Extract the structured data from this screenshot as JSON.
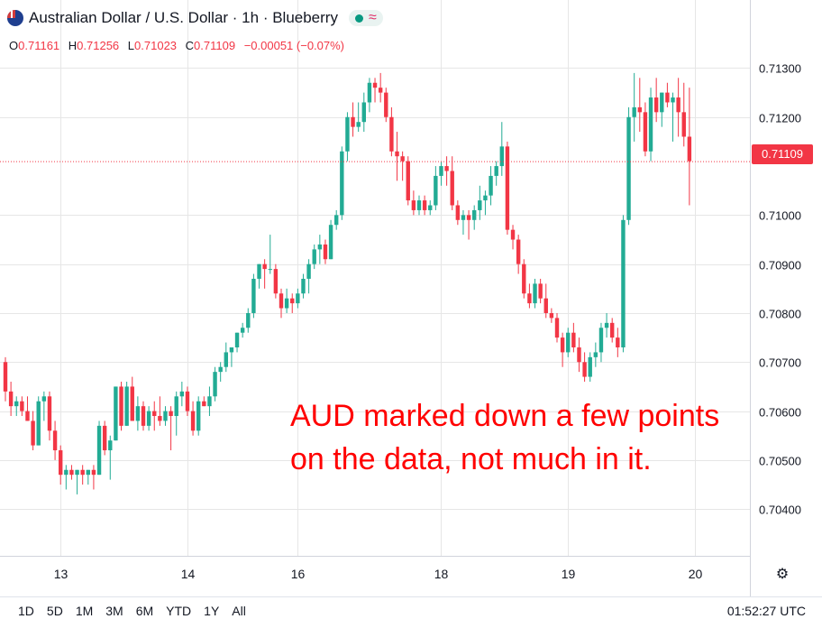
{
  "header": {
    "title": "Australian Dollar / U.S. Dollar · 1h · Blueberry",
    "open_label": "O",
    "open": "0.71161",
    "high_label": "H",
    "high": "0.71256",
    "low_label": "L",
    "low": "0.71023",
    "close_label": "C",
    "close": "0.71109",
    "change": "−0.00051 (−0.07%)"
  },
  "annotation": [
    "AUD marked down a few points",
    "on the data, not much in it."
  ],
  "current_price_label": "0.71109",
  "range_buttons": [
    "1D",
    "5D",
    "1M",
    "3M",
    "6M",
    "YTD",
    "1Y",
    "All"
  ],
  "clock": "01:52:27 UTC",
  "colors": {
    "up": "#22ab94",
    "down": "#f23645",
    "grid": "#e6e6e6",
    "annotation": "#ff0000"
  },
  "chart_data": {
    "type": "candlestick",
    "symbol": "AUDUSD",
    "interval": "1h",
    "y_ticks": [
      "0.70400",
      "0.70500",
      "0.70600",
      "0.70700",
      "0.70800",
      "0.70900",
      "0.71000",
      "0.71200",
      "0.71300"
    ],
    "ylim": [
      0.70358,
      0.71334
    ],
    "x_ticks": [
      {
        "label": "13",
        "index": 10
      },
      {
        "label": "14",
        "index": 33
      },
      {
        "label": "16",
        "index": 53
      },
      {
        "label": "18",
        "index": 79
      },
      {
        "label": "19",
        "index": 102
      },
      {
        "label": "20",
        "index": 125
      }
    ],
    "last_price": 0.71109,
    "candles": [
      [
        0.707,
        0.7071,
        0.7062,
        0.7064
      ],
      [
        0.7064,
        0.7066,
        0.7059,
        0.7061
      ],
      [
        0.7061,
        0.7063,
        0.7059,
        0.7062
      ],
      [
        0.7062,
        0.7063,
        0.7059,
        0.706
      ],
      [
        0.706,
        0.7063,
        0.7058,
        0.7058
      ],
      [
        0.7058,
        0.706,
        0.7052,
        0.7053
      ],
      [
        0.7053,
        0.7063,
        0.7053,
        0.7062
      ],
      [
        0.7062,
        0.7064,
        0.7058,
        0.7063
      ],
      [
        0.7063,
        0.7064,
        0.7054,
        0.7056
      ],
      [
        0.7056,
        0.7058,
        0.705,
        0.7052
      ],
      [
        0.7052,
        0.7053,
        0.7045,
        0.7047
      ],
      [
        0.7047,
        0.7049,
        0.7044,
        0.7048
      ],
      [
        0.7048,
        0.7049,
        0.7046,
        0.7047
      ],
      [
        0.7047,
        0.7048,
        0.7043,
        0.7048
      ],
      [
        0.7048,
        0.7049,
        0.7045,
        0.7047
      ],
      [
        0.7047,
        0.7048,
        0.7045,
        0.7048
      ],
      [
        0.7048,
        0.7049,
        0.7044,
        0.7047
      ],
      [
        0.7047,
        0.7058,
        0.7047,
        0.7057
      ],
      [
        0.7057,
        0.7058,
        0.7051,
        0.7052
      ],
      [
        0.7052,
        0.7055,
        0.7046,
        0.7054
      ],
      [
        0.7054,
        0.7065,
        0.7054,
        0.7065
      ],
      [
        0.7065,
        0.7066,
        0.7056,
        0.7057
      ],
      [
        0.7057,
        0.7066,
        0.7057,
        0.7065
      ],
      [
        0.7065,
        0.7067,
        0.7058,
        0.7058
      ],
      [
        0.7058,
        0.7063,
        0.7056,
        0.7061
      ],
      [
        0.7061,
        0.7062,
        0.7056,
        0.7057
      ],
      [
        0.7057,
        0.7061,
        0.7056,
        0.706
      ],
      [
        0.706,
        0.7062,
        0.7056,
        0.7059
      ],
      [
        0.7059,
        0.7063,
        0.7057,
        0.7058
      ],
      [
        0.7058,
        0.7061,
        0.7057,
        0.706
      ],
      [
        0.706,
        0.7061,
        0.7052,
        0.7059
      ],
      [
        0.7059,
        0.7064,
        0.7055,
        0.7063
      ],
      [
        0.7063,
        0.7066,
        0.7061,
        0.7064
      ],
      [
        0.7064,
        0.7065,
        0.7059,
        0.706
      ],
      [
        0.706,
        0.7062,
        0.7055,
        0.7056
      ],
      [
        0.7056,
        0.7063,
        0.7055,
        0.7062
      ],
      [
        0.7062,
        0.7063,
        0.7061,
        0.7061
      ],
      [
        0.7061,
        0.7065,
        0.7059,
        0.7063
      ],
      [
        0.7063,
        0.7069,
        0.7062,
        0.7068
      ],
      [
        0.7068,
        0.707,
        0.7066,
        0.7069
      ],
      [
        0.7069,
        0.7074,
        0.7068,
        0.7072
      ],
      [
        0.7072,
        0.7073,
        0.7069,
        0.7073
      ],
      [
        0.7073,
        0.7076,
        0.7072,
        0.7076
      ],
      [
        0.7076,
        0.7078,
        0.7075,
        0.7077
      ],
      [
        0.7077,
        0.7081,
        0.7076,
        0.708
      ],
      [
        0.708,
        0.7088,
        0.7079,
        0.7087
      ],
      [
        0.7087,
        0.709,
        0.7085,
        0.709
      ],
      [
        0.709,
        0.7091,
        0.7085,
        0.7089
      ],
      [
        0.7089,
        0.7096,
        0.7088,
        0.7089
      ],
      [
        0.7089,
        0.709,
        0.7083,
        0.7084
      ],
      [
        0.7084,
        0.7085,
        0.7079,
        0.7081
      ],
      [
        0.7081,
        0.7085,
        0.708,
        0.7083
      ],
      [
        0.7083,
        0.7084,
        0.708,
        0.7082
      ],
      [
        0.7082,
        0.7085,
        0.7081,
        0.7084
      ],
      [
        0.7084,
        0.7088,
        0.7083,
        0.7087
      ],
      [
        0.7087,
        0.7091,
        0.7084,
        0.709
      ],
      [
        0.709,
        0.7094,
        0.7089,
        0.7093
      ],
      [
        0.7093,
        0.7096,
        0.709,
        0.7094
      ],
      [
        0.7094,
        0.7095,
        0.709,
        0.7091
      ],
      [
        0.7091,
        0.7099,
        0.7091,
        0.7098
      ],
      [
        0.7098,
        0.7101,
        0.7097,
        0.71
      ],
      [
        0.71,
        0.7114,
        0.7099,
        0.7113
      ],
      [
        0.7113,
        0.7121,
        0.7111,
        0.712
      ],
      [
        0.712,
        0.7123,
        0.7116,
        0.7118
      ],
      [
        0.7118,
        0.7123,
        0.7117,
        0.7119
      ],
      [
        0.7119,
        0.7125,
        0.7117,
        0.7123
      ],
      [
        0.7123,
        0.7128,
        0.7121,
        0.7127
      ],
      [
        0.7127,
        0.7128,
        0.7123,
        0.7126
      ],
      [
        0.7126,
        0.7129,
        0.7123,
        0.7125
      ],
      [
        0.7125,
        0.7126,
        0.7119,
        0.712
      ],
      [
        0.712,
        0.7122,
        0.7112,
        0.7113
      ],
      [
        0.7113,
        0.7117,
        0.7107,
        0.7112
      ],
      [
        0.7112,
        0.7113,
        0.7107,
        0.7111
      ],
      [
        0.7111,
        0.7112,
        0.7102,
        0.7103
      ],
      [
        0.7103,
        0.7105,
        0.71,
        0.7101
      ],
      [
        0.7101,
        0.7104,
        0.71,
        0.7103
      ],
      [
        0.7103,
        0.7104,
        0.71,
        0.7101
      ],
      [
        0.7101,
        0.7103,
        0.71,
        0.7102
      ],
      [
        0.7102,
        0.711,
        0.7101,
        0.7108
      ],
      [
        0.7108,
        0.7111,
        0.7106,
        0.711
      ],
      [
        0.711,
        0.7112,
        0.7106,
        0.7109
      ],
      [
        0.7109,
        0.7112,
        0.7101,
        0.7102
      ],
      [
        0.7102,
        0.7103,
        0.7098,
        0.7099
      ],
      [
        0.7099,
        0.7101,
        0.7096,
        0.71
      ],
      [
        0.71,
        0.7101,
        0.7095,
        0.7099
      ],
      [
        0.7099,
        0.7102,
        0.7097,
        0.7101
      ],
      [
        0.7101,
        0.7106,
        0.7099,
        0.7103
      ],
      [
        0.7103,
        0.7105,
        0.71,
        0.7104
      ],
      [
        0.7104,
        0.711,
        0.7102,
        0.7108
      ],
      [
        0.7108,
        0.7111,
        0.7106,
        0.711
      ],
      [
        0.711,
        0.7119,
        0.7108,
        0.7114
      ],
      [
        0.7114,
        0.7115,
        0.7096,
        0.7097
      ],
      [
        0.7097,
        0.7098,
        0.7093,
        0.7095
      ],
      [
        0.7095,
        0.7096,
        0.7088,
        0.709
      ],
      [
        0.709,
        0.7091,
        0.7083,
        0.7084
      ],
      [
        0.7084,
        0.7086,
        0.7081,
        0.7082
      ],
      [
        0.7082,
        0.7087,
        0.7081,
        0.7086
      ],
      [
        0.7086,
        0.7087,
        0.7082,
        0.7083
      ],
      [
        0.7083,
        0.7086,
        0.7079,
        0.708
      ],
      [
        0.708,
        0.7081,
        0.7078,
        0.7079
      ],
      [
        0.7079,
        0.708,
        0.7074,
        0.7075
      ],
      [
        0.7075,
        0.7076,
        0.7069,
        0.7072
      ],
      [
        0.7072,
        0.7077,
        0.7071,
        0.7076
      ],
      [
        0.7076,
        0.7078,
        0.7072,
        0.7073
      ],
      [
        0.7073,
        0.7075,
        0.7068,
        0.707
      ],
      [
        0.707,
        0.7072,
        0.7066,
        0.7067
      ],
      [
        0.7067,
        0.7072,
        0.7066,
        0.7071
      ],
      [
        0.7071,
        0.7074,
        0.7069,
        0.7072
      ],
      [
        0.7072,
        0.7078,
        0.707,
        0.7077
      ],
      [
        0.7077,
        0.708,
        0.7075,
        0.7078
      ],
      [
        0.7078,
        0.7079,
        0.7074,
        0.7075
      ],
      [
        0.7075,
        0.7077,
        0.7071,
        0.7073
      ],
      [
        0.7073,
        0.71,
        0.7072,
        0.7099
      ],
      [
        0.7099,
        0.7122,
        0.7098,
        0.712
      ],
      [
        0.712,
        0.7129,
        0.7115,
        0.7122
      ],
      [
        0.7122,
        0.7128,
        0.7117,
        0.7121
      ],
      [
        0.7121,
        0.7123,
        0.7112,
        0.7113
      ],
      [
        0.7113,
        0.7126,
        0.7111,
        0.7124
      ],
      [
        0.7124,
        0.7128,
        0.7119,
        0.7121
      ],
      [
        0.7121,
        0.7125,
        0.7118,
        0.7125
      ],
      [
        0.7125,
        0.7127,
        0.7122,
        0.7123
      ],
      [
        0.7123,
        0.7125,
        0.7115,
        0.7124
      ],
      [
        0.7124,
        0.7128,
        0.7116,
        0.7121
      ],
      [
        0.7121,
        0.7127,
        0.7114,
        0.7116
      ],
      [
        0.7116,
        0.7126,
        0.7102,
        0.7111
      ]
    ]
  }
}
